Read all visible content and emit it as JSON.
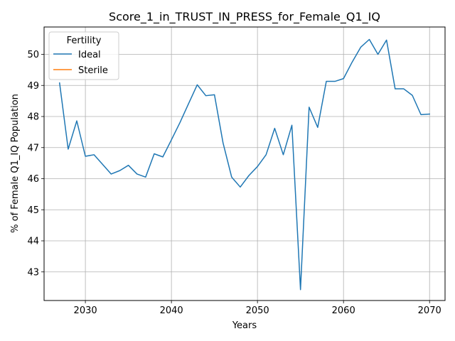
{
  "chart_data": {
    "type": "line",
    "title": "Score_1_in_TRUST_IN_PRESS_for_Female_Q1_IQ",
    "xlabel": "Years",
    "ylabel": "% of Female Q1_IQ Population",
    "xlim": [
      2025.2,
      2071.8
    ],
    "ylim": [
      42.08,
      50.88
    ],
    "xticks": [
      2030,
      2040,
      2050,
      2060,
      2070
    ],
    "yticks": [
      43,
      44,
      45,
      46,
      47,
      48,
      49,
      50
    ],
    "grid": true,
    "legend": {
      "title": "Fertility",
      "placement": "top-left"
    },
    "series": [
      {
        "name": "Ideal",
        "color": "#1f77b4",
        "x": [
          2027,
          2028,
          2029,
          2030,
          2031,
          2032,
          2033,
          2034,
          2035,
          2036,
          2037,
          2038,
          2039,
          2040,
          2041,
          2042,
          2043,
          2044,
          2045,
          2046,
          2047,
          2048,
          2049,
          2050,
          2051,
          2052,
          2053,
          2054,
          2055,
          2056,
          2057,
          2058,
          2059,
          2060,
          2061,
          2062,
          2063,
          2064,
          2065,
          2066,
          2067,
          2068,
          2069,
          2070
        ],
        "y": [
          49.08,
          46.95,
          47.86,
          46.72,
          46.77,
          46.46,
          46.15,
          46.26,
          46.43,
          46.15,
          46.05,
          46.8,
          46.7,
          47.25,
          47.81,
          48.42,
          49.02,
          48.67,
          48.7,
          47.15,
          46.05,
          45.73,
          46.1,
          46.39,
          46.77,
          47.62,
          46.77,
          47.72,
          42.43,
          48.3,
          47.65,
          49.13,
          49.13,
          49.22,
          49.75,
          50.23,
          50.48,
          50.0,
          50.46,
          48.89,
          48.89,
          48.68,
          48.06,
          48.08
        ]
      },
      {
        "name": "Sterile",
        "color": "#ff7f0e",
        "x": [],
        "y": []
      }
    ]
  }
}
